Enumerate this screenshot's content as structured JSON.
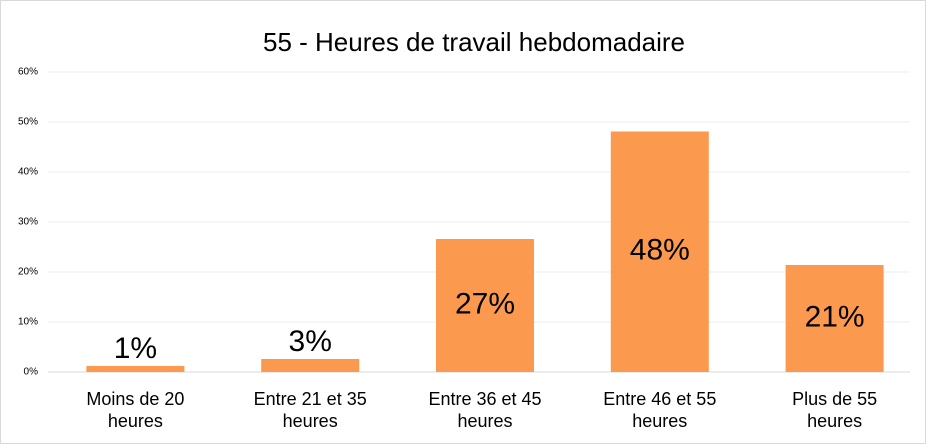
{
  "chart_data": {
    "type": "bar",
    "title": "55 - Heures de travail hebdomadaire",
    "categories": [
      "Moins de 20 heures",
      "Entre 21 et 35 heures",
      "Entre 36 et 45 heures",
      "Entre 46 et 55 heures",
      "Plus de 55 heures"
    ],
    "values": [
      1.2,
      2.6,
      26.6,
      48.1,
      21.4
    ],
    "value_labels": [
      "1%",
      "3%",
      "27%",
      "48%",
      "21%"
    ],
    "color": "#fb9a4e",
    "ylim": [
      0,
      60
    ],
    "yticks": [
      {
        "value": 0,
        "label": "0%"
      },
      {
        "value": 10,
        "label": "10%"
      },
      {
        "value": 20,
        "label": "20%"
      },
      {
        "value": 30,
        "label": "30%"
      },
      {
        "value": 40,
        "label": "40%"
      },
      {
        "value": 50,
        "label": "50%"
      },
      {
        "value": 60,
        "label": "60%"
      }
    ],
    "grid": true
  }
}
